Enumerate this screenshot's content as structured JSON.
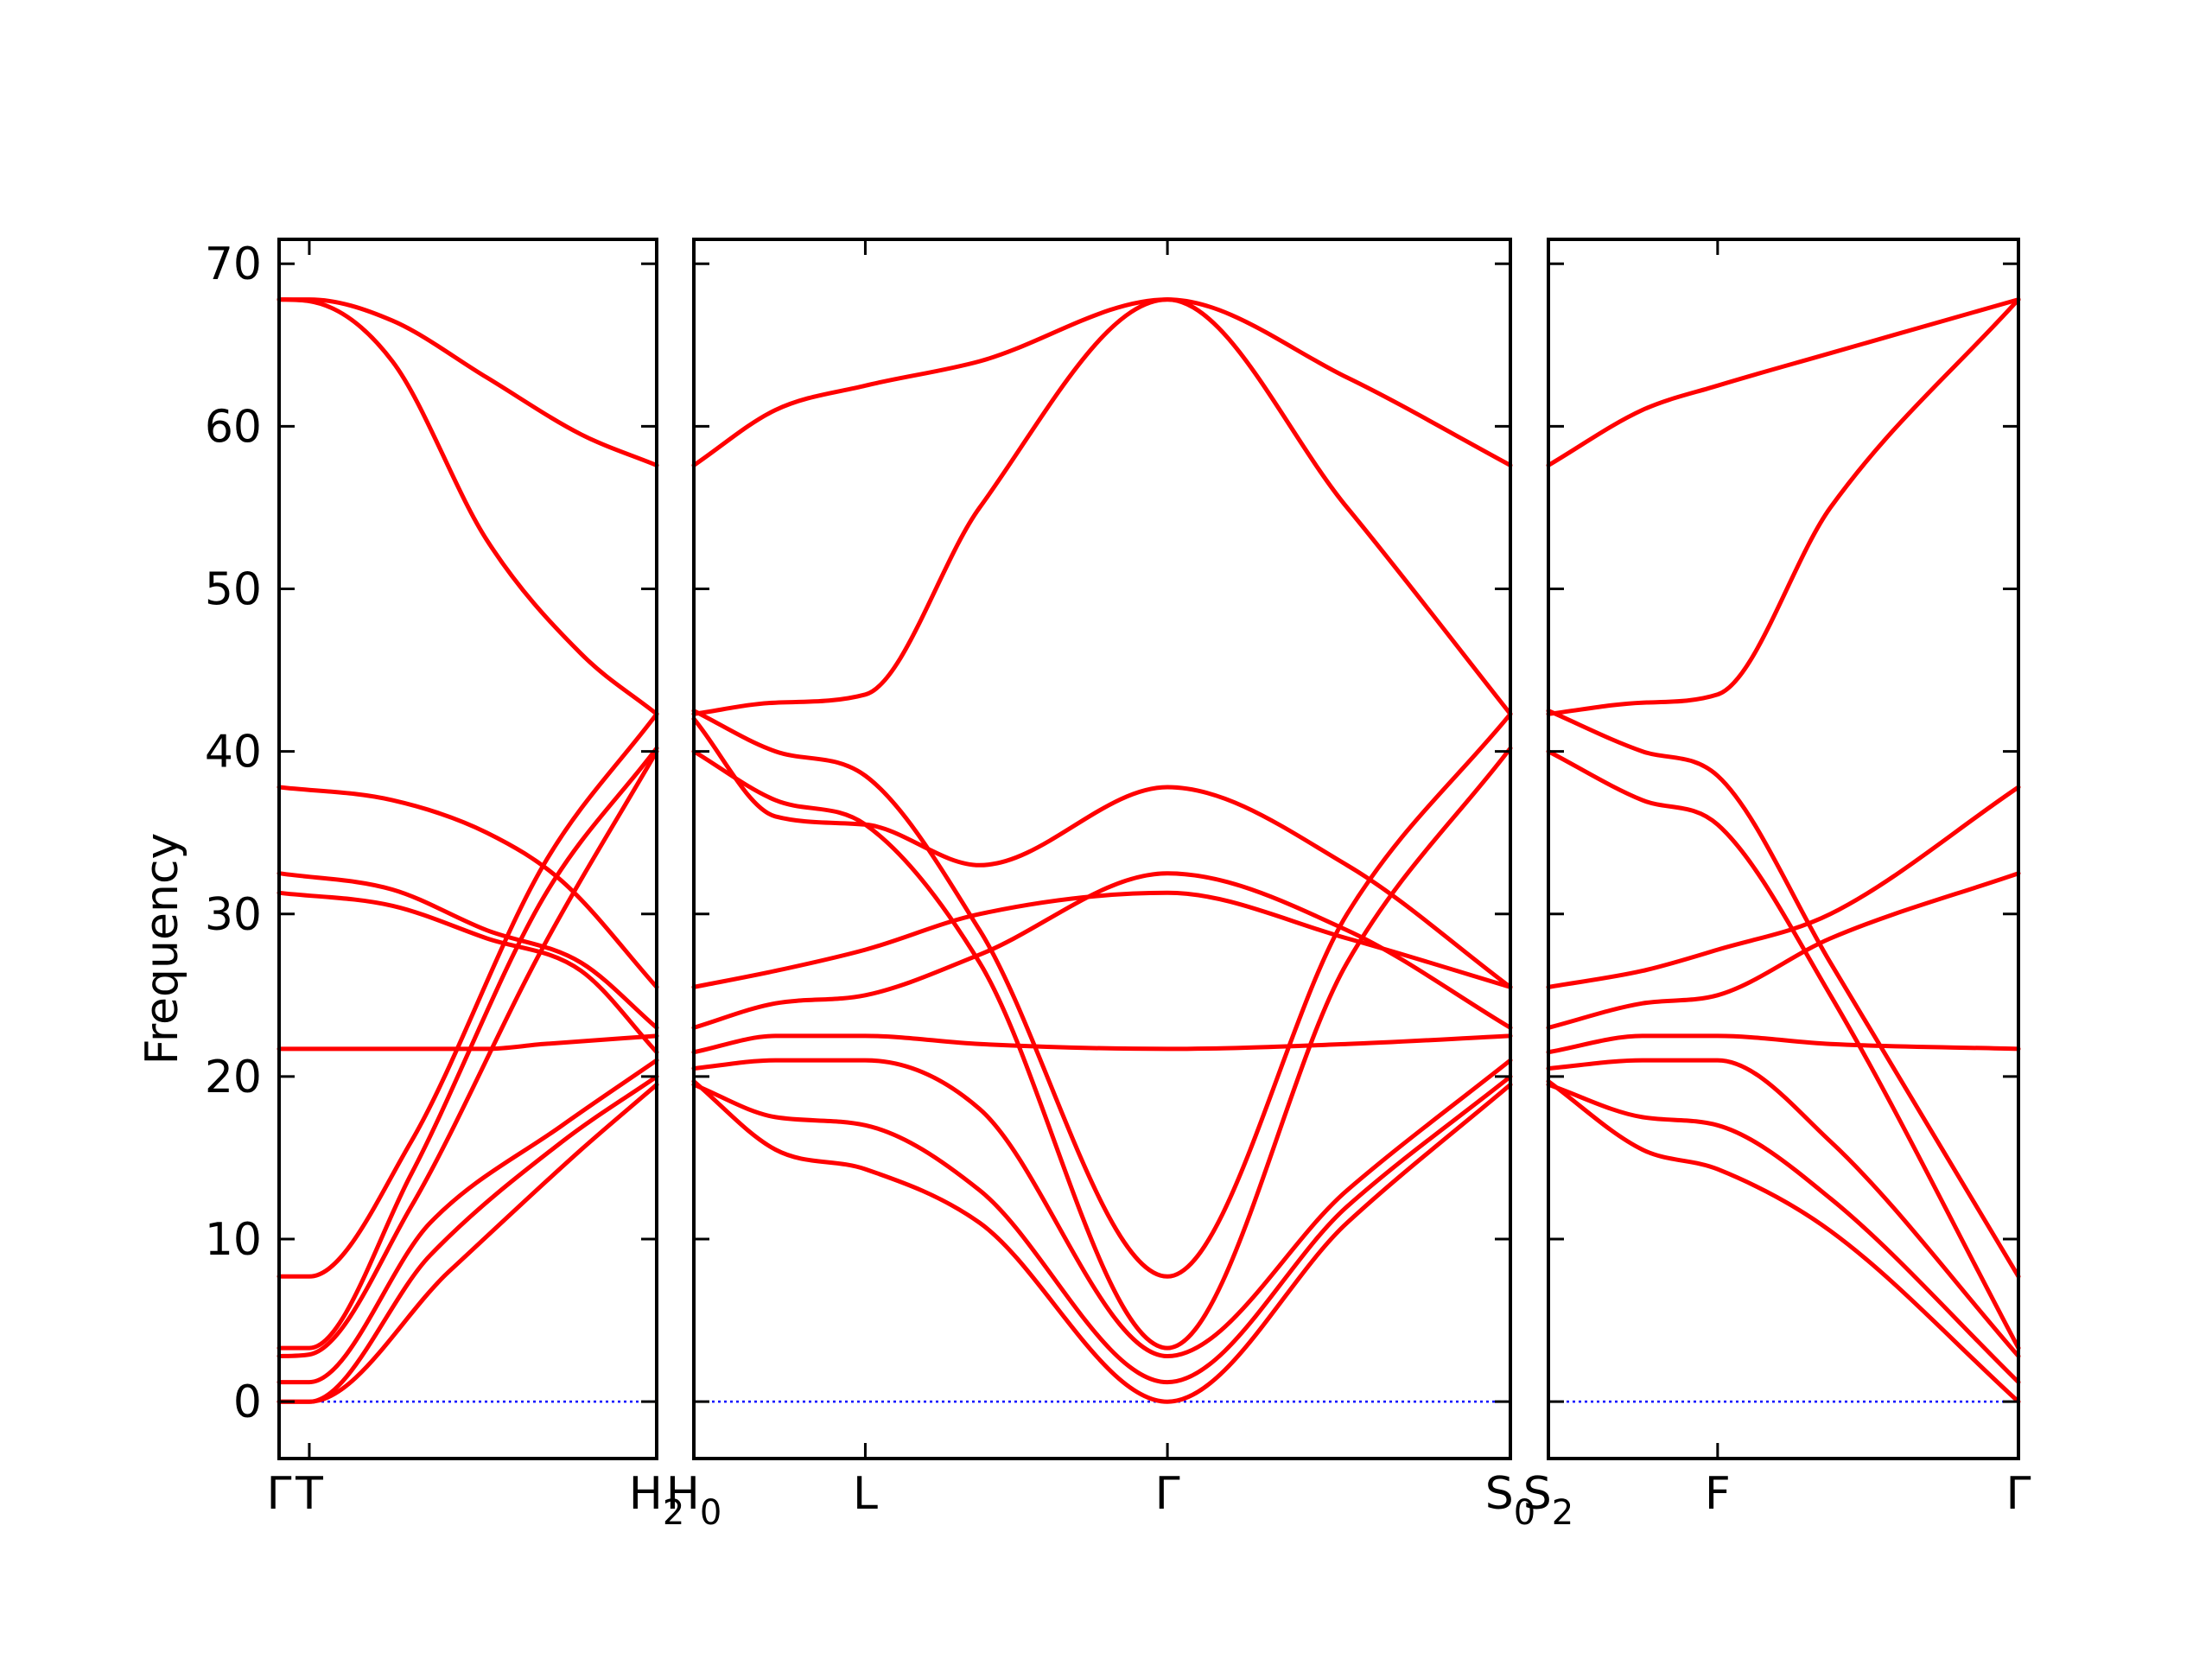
{
  "chart_data": {
    "type": "line",
    "ylabel": "Frequency",
    "ylim": [
      -3.5,
      71.5
    ],
    "yticks": [
      0,
      10,
      20,
      30,
      40,
      50,
      60,
      70
    ],
    "grid": false,
    "legend": "none",
    "colors": {
      "bands": "#ff0000",
      "zero_line": "#0000ff",
      "frame": "#000000"
    },
    "panels": [
      {
        "xticks": [
          {
            "pos": 0.0,
            "label": "Γ"
          },
          {
            "pos": 0.08,
            "label": "T"
          },
          {
            "pos": 1.0,
            "label": "H",
            "sub": "2"
          }
        ],
        "bands": [
          {
            "x": [
              0,
              0.08,
              0.3,
              0.55,
              0.8,
              1.0
            ],
            "y": [
              67.8,
              67.7,
              64.0,
              53.0,
              46.0,
              42.3
            ]
          },
          {
            "x": [
              0,
              0.08,
              0.3,
              0.55,
              0.8,
              1.0
            ],
            "y": [
              67.8,
              67.8,
              66.5,
              63.0,
              59.5,
              57.6
            ]
          },
          {
            "x": [
              0,
              0.3,
              0.55,
              0.75,
              1.0
            ],
            "y": [
              37.8,
              37.0,
              35.0,
              32.0,
              25.5
            ]
          },
          {
            "x": [
              0,
              0.3,
              0.55,
              0.8,
              1.0
            ],
            "y": [
              32.5,
              31.5,
              29.0,
              27.0,
              23.0
            ]
          },
          {
            "x": [
              0,
              0.3,
              0.55,
              0.8,
              1.0
            ],
            "y": [
              31.3,
              30.5,
              28.5,
              26.5,
              21.5
            ]
          },
          {
            "x": [
              0,
              0.3,
              0.55,
              0.7,
              1.0
            ],
            "y": [
              21.7,
              21.7,
              21.7,
              22.0,
              22.5
            ]
          },
          {
            "x": [
              0,
              0.08,
              0.35,
              0.7,
              1.0
            ],
            "y": [
              7.7,
              7.7,
              16.0,
              33.0,
              42.3
            ]
          },
          {
            "x": [
              0,
              0.08,
              0.35,
              0.7,
              1.0
            ],
            "y": [
              3.3,
              3.3,
              14.0,
              31.0,
              40.2
            ]
          },
          {
            "x": [
              0,
              0.08,
              0.35,
              0.7,
              1.0
            ],
            "y": [
              2.8,
              2.9,
              12.0,
              28.0,
              40.0
            ]
          },
          {
            "x": [
              0,
              0.08,
              0.4,
              0.75,
              1.0
            ],
            "y": [
              1.2,
              1.2,
              11.0,
              17.0,
              21.0
            ]
          },
          {
            "x": [
              0,
              0.08,
              0.4,
              0.75,
              1.0
            ],
            "y": [
              0.0,
              0.0,
              9.0,
              16.0,
              20.0
            ]
          },
          {
            "x": [
              0,
              0.08,
              0.45,
              0.8,
              1.0
            ],
            "y": [
              0.0,
              0.0,
              8.0,
              15.5,
              19.5
            ]
          }
        ]
      },
      {
        "xticks": [
          {
            "pos": 0.0,
            "label": "H",
            "sub": "0"
          },
          {
            "pos": 0.21,
            "label": "L"
          },
          {
            "pos": 0.58,
            "label": "Γ"
          },
          {
            "pos": 1.0,
            "label": "S",
            "sub": "0"
          }
        ],
        "bands": [
          {
            "x": [
              0,
              0.1,
              0.21,
              0.35,
              0.58,
              0.8,
              1.0
            ],
            "y": [
              57.6,
              61.0,
              62.5,
              64.0,
              67.8,
              63.0,
              57.6
            ]
          },
          {
            "x": [
              0,
              0.1,
              0.21,
              0.35,
              0.58,
              0.8,
              1.0
            ],
            "y": [
              42.3,
              43.0,
              43.5,
              55.0,
              67.8,
              55.0,
              42.3
            ]
          },
          {
            "x": [
              0,
              0.1,
              0.21,
              0.35,
              0.58,
              0.8,
              1.0
            ],
            "y": [
              42.5,
              40.0,
              38.5,
              29.0,
              7.7,
              30.0,
              42.3
            ]
          },
          {
            "x": [
              0,
              0.1,
              0.21,
              0.35,
              0.58,
              0.8,
              1.0
            ],
            "y": [
              40.0,
              37.0,
              35.5,
              27.0,
              3.3,
              27.0,
              40.2
            ]
          },
          {
            "x": [
              0,
              0.1,
              0.21,
              0.35,
              0.58,
              0.8,
              1.0
            ],
            "y": [
              25.5,
              26.5,
              27.8,
              30.0,
              31.3,
              28.5,
              25.5
            ]
          },
          {
            "x": [
              0,
              0.1,
              0.21,
              0.35,
              0.58,
              0.8,
              1.0
            ],
            "y": [
              23.0,
              24.5,
              25.0,
              27.5,
              32.5,
              29.0,
              23.0
            ]
          },
          {
            "x": [
              0,
              0.1,
              0.21,
              0.35,
              0.58,
              0.8,
              1.0
            ],
            "y": [
              21.5,
              22.5,
              22.5,
              22.0,
              21.7,
              22.0,
              22.5
            ]
          },
          {
            "x": [
              0,
              0.1,
              0.21,
              0.35,
              0.58,
              0.8,
              1.0
            ],
            "y": [
              20.5,
              21.0,
              21.0,
              18.0,
              2.8,
              13.0,
              21.0
            ]
          },
          {
            "x": [
              0,
              0.1,
              0.21,
              0.35,
              0.58,
              0.8,
              1.0
            ],
            "y": [
              19.5,
              17.5,
              17.0,
              13.0,
              1.2,
              12.0,
              20.0
            ]
          },
          {
            "x": [
              0,
              0.1,
              0.21,
              0.35,
              0.58,
              0.8,
              1.0
            ],
            "y": [
              19.7,
              15.5,
              14.3,
              11.0,
              0.0,
              11.0,
              19.5
            ]
          },
          {
            "x": [
              0,
              0.1,
              0.21,
              0.35,
              0.58,
              0.8,
              1.0
            ],
            "y": [
              42.0,
              36.0,
              35.5,
              33.0,
              37.8,
              33.0,
              25.5
            ]
          }
        ]
      },
      {
        "xticks": [
          {
            "pos": 0.0,
            "label": "S",
            "sub": "2"
          },
          {
            "pos": 0.36,
            "label": "F"
          },
          {
            "pos": 1.0,
            "label": "Γ"
          }
        ],
        "bands": [
          {
            "x": [
              0,
              0.2,
              0.36,
              0.6,
              1.0
            ],
            "y": [
              57.6,
              61.0,
              62.5,
              64.5,
              67.8
            ]
          },
          {
            "x": [
              0,
              0.2,
              0.36,
              0.6,
              1.0
            ],
            "y": [
              42.3,
              43.0,
              43.5,
              55.0,
              67.8
            ]
          },
          {
            "x": [
              0,
              0.2,
              0.36,
              0.6,
              1.0
            ],
            "y": [
              42.5,
              40.0,
              38.5,
              27.0,
              7.7
            ]
          },
          {
            "x": [
              0,
              0.2,
              0.36,
              0.6,
              1.0
            ],
            "y": [
              40.0,
              37.0,
              35.5,
              25.0,
              3.3
            ]
          },
          {
            "x": [
              0,
              0.2,
              0.36,
              0.6,
              1.0
            ],
            "y": [
              25.5,
              26.5,
              27.8,
              30.0,
              37.8
            ]
          },
          {
            "x": [
              0,
              0.2,
              0.36,
              0.6,
              1.0
            ],
            "y": [
              23.0,
              24.5,
              25.0,
              28.5,
              32.5
            ]
          },
          {
            "x": [
              0,
              0.2,
              0.36,
              0.6,
              1.0
            ],
            "y": [
              21.5,
              22.5,
              22.5,
              22.0,
              21.7
            ]
          },
          {
            "x": [
              0,
              0.2,
              0.36,
              0.6,
              1.0
            ],
            "y": [
              20.5,
              21.0,
              21.0,
              16.0,
              2.8
            ]
          },
          {
            "x": [
              0,
              0.2,
              0.36,
              0.6,
              1.0
            ],
            "y": [
              19.5,
              17.5,
              17.0,
              12.5,
              1.2
            ]
          },
          {
            "x": [
              0,
              0.2,
              0.36,
              0.6,
              1.0
            ],
            "y": [
              19.7,
              15.5,
              14.3,
              10.5,
              0.0
            ]
          }
        ]
      }
    ]
  }
}
